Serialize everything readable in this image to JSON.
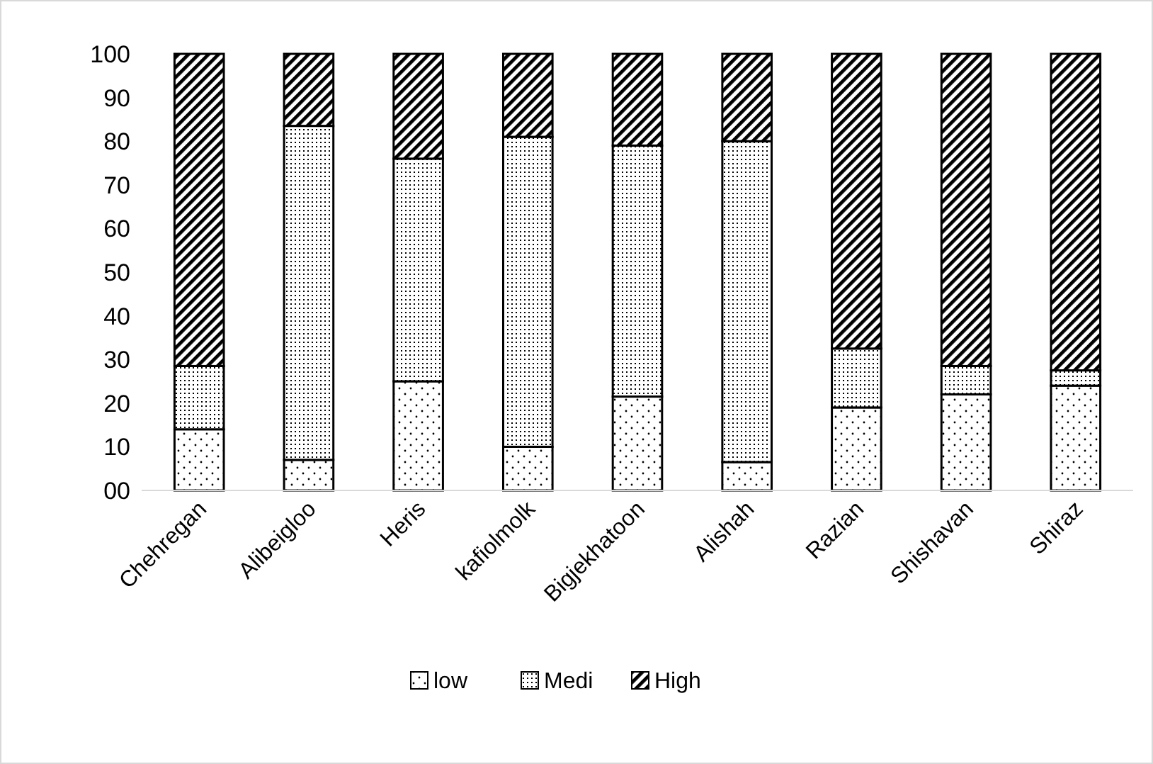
{
  "chart_data": {
    "type": "bar",
    "stacked": true,
    "categories": [
      "Chehregan",
      "Alibeigloo",
      "Heris",
      "kafiolmolk",
      "Bigjekhatoon",
      "Alishah",
      "Razian",
      "Shishavan",
      "Shiraz"
    ],
    "series": [
      {
        "name": "low",
        "color": "#000000",
        "values": [
          14,
          7,
          25,
          10,
          21.5,
          6.5,
          19,
          22,
          24
        ]
      },
      {
        "name": "Medi",
        "color": "#000000",
        "values": [
          14.5,
          76.5,
          51,
          71,
          57.5,
          73.5,
          13.5,
          6.5,
          3.5
        ]
      },
      {
        "name": "High",
        "color": "#000000",
        "values": [
          71.5,
          16.5,
          24,
          19,
          21,
          20,
          67.5,
          71.5,
          72.5
        ]
      }
    ],
    "ylim": [
      0,
      100
    ],
    "yticks": [
      {
        "value": 0,
        "label": "00"
      },
      10,
      20,
      30,
      40,
      50,
      60,
      70,
      80,
      90,
      100
    ],
    "grid": false,
    "legend": "bottom"
  }
}
